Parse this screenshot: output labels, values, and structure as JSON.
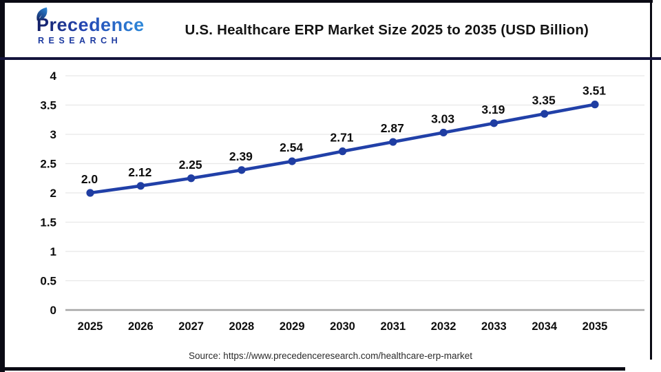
{
  "header": {
    "logo_brand": "Precedence",
    "logo_sub": "RESEARCH",
    "title": "U.S. Healthcare ERP Market Size 2025 to 2035 (USD Billion)"
  },
  "footer": {
    "source": "Source: https://www.precedenceresearch.com/healthcare-erp-market"
  },
  "colors": {
    "line": "#2140a8",
    "marker": "#1f3da2",
    "grid": "#e7e7e7",
    "axis_baseline": "#a6a6a6",
    "label_text": "#0d0d0d",
    "divider_navy": "#14143c",
    "frame_black": "#0a0a14",
    "logo_navy": "#1c3aa0",
    "logo_blue": "#2e8ada"
  },
  "chart_data": {
    "type": "line",
    "title": "U.S. Healthcare ERP Market Size 2025 to 2035 (USD Billion)",
    "categories": [
      "2025",
      "2026",
      "2027",
      "2028",
      "2029",
      "2030",
      "2031",
      "2032",
      "2033",
      "2034",
      "2035"
    ],
    "series": [
      {
        "name": "U.S. Healthcare ERP Market Size (USD Billion)",
        "values": [
          2.0,
          2.12,
          2.25,
          2.39,
          2.54,
          2.71,
          2.87,
          3.03,
          3.19,
          3.35,
          3.51
        ],
        "labels": [
          "2.0",
          "2.12",
          "2.25",
          "2.39",
          "2.54",
          "2.71",
          "2.87",
          "3.03",
          "3.19",
          "3.35",
          "3.51"
        ]
      }
    ],
    "xlabel": "",
    "ylabel": "",
    "ylim": [
      0,
      4
    ],
    "ytick_step": 0.5,
    "yticks": [
      "4",
      "3.5",
      "3",
      "2.5",
      "2",
      "1.5",
      "1",
      "0.5",
      "0"
    ],
    "grid": true,
    "legend": "none"
  }
}
